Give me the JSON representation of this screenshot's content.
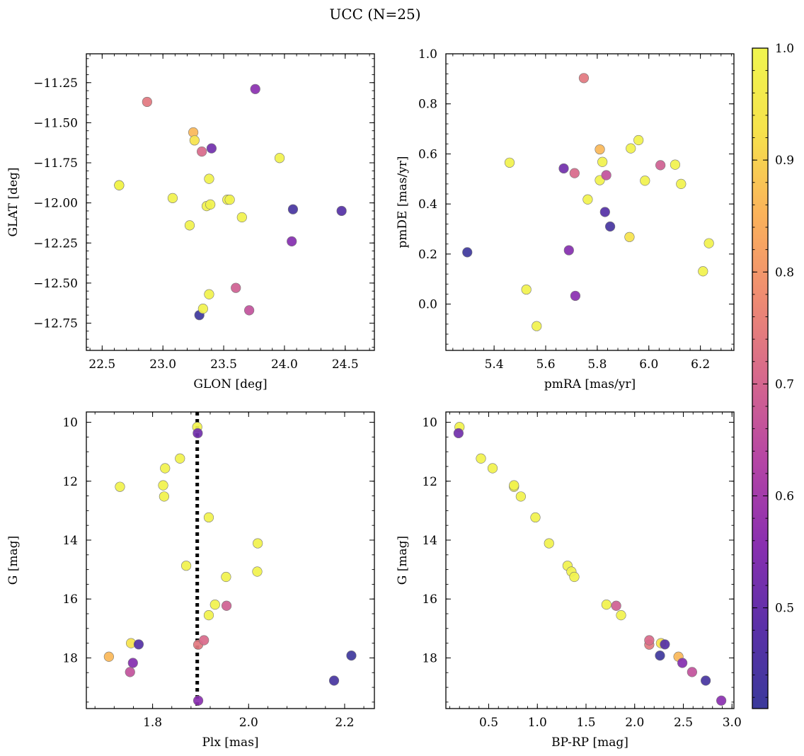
{
  "figure": {
    "title": "UCC (N=25)"
  },
  "colorbar": {
    "min": 0.41,
    "max": 1.0,
    "ticks": [
      0.5,
      0.6,
      0.7,
      0.8,
      0.9,
      1.0
    ],
    "tick_labels": [
      "0.5",
      "0.6",
      "0.7",
      "0.8",
      "0.9",
      "1.0"
    ],
    "colormap": "plasma",
    "colormap_stops": [
      "#3b3a9b",
      "#5b30a8",
      "#8a2fb0",
      "#b545a5",
      "#d6688d",
      "#ef8c71",
      "#fbb35a",
      "#f6e24c",
      "#f0f54e"
    ],
    "marker_edge_color": "#777777"
  },
  "members": [
    {
      "glon": 22.64,
      "glat": -11.89,
      "pmra": 5.46,
      "pmde": 0.565,
      "plx": 1.732,
      "g": 12.19,
      "bprp": 0.76,
      "p": 0.99
    },
    {
      "glon": 22.87,
      "glat": -11.37,
      "pmra": 5.748,
      "pmde": 0.903,
      "plx": 1.895,
      "g": 17.55,
      "bprp": 2.15,
      "p": 0.74
    },
    {
      "glon": 23.08,
      "glat": -11.97,
      "pmra": 5.81,
      "pmde": 0.495,
      "plx": 1.824,
      "g": 12.52,
      "bprp": 0.83,
      "p": 0.99
    },
    {
      "glon": 23.22,
      "glat": -12.14,
      "pmra": 5.93,
      "pmde": 0.622,
      "plx": 1.822,
      "g": 12.14,
      "bprp": 0.76,
      "p": 0.99
    },
    {
      "glon": 23.25,
      "glat": -11.56,
      "pmra": 5.81,
      "pmde": 0.618,
      "plx": 1.709,
      "g": 17.96,
      "bprp": 2.45,
      "p": 0.86
    },
    {
      "glon": 23.26,
      "glat": -11.61,
      "pmra": 5.925,
      "pmde": 0.268,
      "plx": 1.755,
      "g": 17.5,
      "bprp": 2.27,
      "p": 0.93
    },
    {
      "glon": 23.3,
      "glat": -12.7,
      "pmra": 5.296,
      "pmde": 0.207,
      "plx": 2.214,
      "g": 17.92,
      "bprp": 2.26,
      "p": 0.42
    },
    {
      "glon": 23.32,
      "glat": -11.68,
      "pmra": 5.712,
      "pmde": 0.523,
      "plx": 1.907,
      "g": 17.4,
      "bprp": 2.15,
      "p": 0.71
    },
    {
      "glon": 23.33,
      "glat": -12.66,
      "pmra": 5.525,
      "pmde": 0.058,
      "plx": 1.893,
      "g": 10.16,
      "bprp": 0.2,
      "p": 0.99
    },
    {
      "glon": 23.36,
      "glat": -12.02,
      "pmra": 6.21,
      "pmde": 0.131,
      "plx": 1.857,
      "g": 11.23,
      "bprp": 0.42,
      "p": 0.99
    },
    {
      "glon": 23.38,
      "glat": -11.85,
      "pmra": 5.565,
      "pmde": -0.088,
      "plx": 1.826,
      "g": 11.56,
      "bprp": 0.54,
      "p": 0.99
    },
    {
      "glon": 23.38,
      "glat": -12.57,
      "pmra": 5.763,
      "pmde": 0.418,
      "plx": 1.917,
      "g": 13.23,
      "bprp": 0.98,
      "p": 0.99
    },
    {
      "glon": 23.39,
      "glat": -12.01,
      "pmra": 6.102,
      "pmde": 0.557,
      "plx": 2.019,
      "g": 14.11,
      "bprp": 1.12,
      "p": 0.99
    },
    {
      "glon": 23.4,
      "glat": -11.66,
      "pmra": 5.67,
      "pmde": 0.542,
      "plx": 1.894,
      "g": 10.37,
      "bprp": 0.19,
      "p": 0.52
    },
    {
      "glon": 23.53,
      "glat": -11.98,
      "pmra": 5.82,
      "pmde": 0.568,
      "plx": 1.87,
      "g": 14.87,
      "bprp": 1.31,
      "p": 0.99
    },
    {
      "glon": 23.6,
      "glat": -12.53,
      "pmra": 6.045,
      "pmde": 0.555,
      "plx": 1.954,
      "g": 16.23,
      "bprp": 1.81,
      "p": 0.69
    },
    {
      "glon": 23.65,
      "glat": -12.09,
      "pmra": 5.985,
      "pmde": 0.493,
      "plx": 2.018,
      "g": 15.07,
      "bprp": 1.35,
      "p": 0.99
    },
    {
      "glon": 23.71,
      "glat": -12.67,
      "pmra": 5.835,
      "pmde": 0.515,
      "plx": 1.753,
      "g": 18.48,
      "bprp": 2.59,
      "p": 0.66
    },
    {
      "glon": 23.76,
      "glat": -11.29,
      "pmra": 5.715,
      "pmde": 0.033,
      "plx": 1.895,
      "g": 19.45,
      "bprp": 2.89,
      "p": 0.56
    },
    {
      "glon": 23.96,
      "glat": -11.72,
      "pmra": 6.125,
      "pmde": 0.48,
      "plx": 1.953,
      "g": 15.25,
      "bprp": 1.38,
      "p": 0.99
    },
    {
      "glon": 24.06,
      "glat": -12.24,
      "pmra": 5.69,
      "pmde": 0.215,
      "plx": 1.759,
      "g": 18.17,
      "bprp": 2.49,
      "p": 0.55
    },
    {
      "glon": 24.07,
      "glat": -12.04,
      "pmra": 5.85,
      "pmde": 0.31,
      "plx": 2.178,
      "g": 18.77,
      "bprp": 2.73,
      "p": 0.44
    },
    {
      "glon": 24.47,
      "glat": -12.05,
      "pmra": 5.83,
      "pmde": 0.368,
      "plx": 1.771,
      "g": 17.54,
      "bprp": 2.31,
      "p": 0.47
    },
    {
      "glon": 23.55,
      "glat": -11.98,
      "pmra": 6.233,
      "pmde": 0.243,
      "plx": 1.917,
      "g": 16.55,
      "bprp": 1.86,
      "p": 0.99
    },
    {
      "glon": 22.64,
      "glat": -11.89,
      "pmra": 5.96,
      "pmde": 0.655,
      "plx": 1.93,
      "g": 16.19,
      "bprp": 1.71,
      "p": 0.99
    }
  ],
  "chart_data": [
    {
      "type": "scatter",
      "id": "glon-glat",
      "title": "",
      "xlabel": "GLON [deg]",
      "ylabel": "GLAT [deg]",
      "x_field": "glon",
      "y_field": "glat",
      "xlim": [
        22.37,
        24.74
      ],
      "ylim": [
        -12.92,
        -11.07
      ],
      "y_inverted": false,
      "xticks": [
        22.5,
        23.0,
        23.5,
        24.0,
        24.5
      ],
      "xtick_labels": [
        "22.5",
        "23.0",
        "23.5",
        "24.0",
        "24.5"
      ],
      "yticks": [
        -12.75,
        -12.5,
        -12.25,
        -12.0,
        -11.75,
        -11.5,
        -11.25
      ],
      "ytick_labels": [
        "−12.75",
        "−12.50",
        "−12.25",
        "−12.00",
        "−11.75",
        "−11.50",
        "−11.25"
      ]
    },
    {
      "type": "scatter",
      "id": "pmra-pmde",
      "title": "",
      "xlabel": "pmRA [mas/yr]",
      "ylabel": "pmDE [mas/yr]",
      "x_field": "pmra",
      "y_field": "pmde",
      "xlim": [
        5.213,
        6.33
      ],
      "ylim": [
        -0.185,
        1.0
      ],
      "y_inverted": false,
      "xticks": [
        5.4,
        5.6,
        5.8,
        6.0,
        6.2
      ],
      "xtick_labels": [
        "5.4",
        "5.6",
        "5.8",
        "6.0",
        "6.2"
      ],
      "yticks": [
        0.0,
        0.2,
        0.4,
        0.6,
        0.8,
        1.0
      ],
      "ytick_labels": [
        "0.0",
        "0.2",
        "0.4",
        "0.6",
        "0.8",
        "1.0"
      ]
    },
    {
      "type": "scatter",
      "id": "plx-g",
      "title": "",
      "xlabel": "Plx [mas]",
      "ylabel": "G [mag]",
      "x_field": "plx",
      "y_field": "g",
      "xlim": [
        1.662,
        2.262
      ],
      "ylim": [
        9.65,
        19.72
      ],
      "y_inverted": true,
      "vline": 1.893,
      "xticks": [
        1.8,
        2.0,
        2.2
      ],
      "xtick_labels": [
        "1.8",
        "2.0",
        "2.2"
      ],
      "yticks": [
        10,
        12,
        14,
        16,
        18
      ],
      "ytick_labels": [
        "10",
        "12",
        "14",
        "16",
        "18"
      ]
    },
    {
      "type": "scatter",
      "id": "bprp-g",
      "title": "",
      "xlabel": "BP-RP [mag]",
      "ylabel": "G [mag]",
      "x_field": "bprp",
      "y_field": "g",
      "xlim": [
        0.06,
        3.02
      ],
      "ylim": [
        9.65,
        19.72
      ],
      "y_inverted": true,
      "xticks": [
        0.5,
        1.0,
        1.5,
        2.0,
        2.5,
        3.0
      ],
      "xtick_labels": [
        "0.5",
        "1.0",
        "1.5",
        "2.0",
        "2.5",
        "3.0"
      ],
      "yticks": [
        10,
        12,
        14,
        16,
        18
      ],
      "ytick_labels": [
        "10",
        "12",
        "14",
        "16",
        "18"
      ]
    }
  ]
}
